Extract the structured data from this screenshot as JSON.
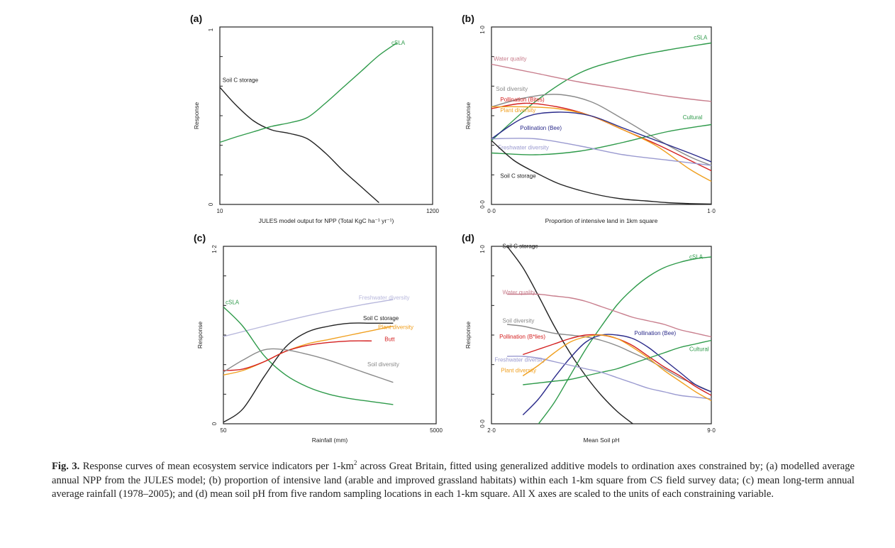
{
  "caption": {
    "label": "Fig. 3.",
    "text_before_sup": "Response curves of mean ecosystem service indicators per 1-km",
    "sup": "2",
    "text_after_sup": "across Great Britain, fitted using generalized additive models to ordination axes constrained by; (a) modelled average annual NPP from the JULES model; (b) proportion of intensive land (arable and improved grassland habitats) within each 1-km square from CS field survey data; (c) mean long-term annual average rainfall (1978–2005); and (d) mean soil pH from five random sampling locations in each 1-km square. All X axes are scaled to the units of each constraining variable."
  },
  "colors": {
    "black": "#222222",
    "green": "#2e9a4a",
    "pink": "#c87d8c",
    "grey": "#8a8a8a",
    "red": "#d42020",
    "orange": "#f0a020",
    "navy": "#2a2a8a",
    "lavender": "#9a9ad0",
    "lightlavender": "#b8b8dc"
  },
  "chart_data": [
    {
      "panel": "(a)",
      "type": "line",
      "xlabel": "JULES model output for NPP (Total KgC ha⁻¹ yr⁻¹)",
      "ylabel": "Response",
      "xlim": [
        10,
        1200
      ],
      "ylim": [
        0,
        1
      ],
      "xticks": [
        "10",
        "1200"
      ],
      "yticks": [
        "0",
        "1"
      ],
      "series": [
        {
          "name": "Soil C storage",
          "color": "black",
          "label_at": [
            25,
            0.69
          ],
          "x": [
            10,
            100,
            200,
            300,
            400,
            500,
            600,
            700,
            800,
            900
          ],
          "y": [
            0.66,
            0.56,
            0.47,
            0.42,
            0.4,
            0.37,
            0.29,
            0.19,
            0.1,
            0.01
          ]
        },
        {
          "name": "cSLA",
          "color": "green",
          "label_at": [
            970,
            0.9
          ],
          "x": [
            10,
            100,
            200,
            300,
            400,
            500,
            600,
            700,
            800,
            900,
            1000
          ],
          "y": [
            0.35,
            0.38,
            0.41,
            0.44,
            0.46,
            0.49,
            0.57,
            0.66,
            0.75,
            0.84,
            0.91
          ]
        }
      ]
    },
    {
      "panel": "(b)",
      "type": "line",
      "xlabel": "Proportion of intensive land in 1km square",
      "ylabel": "Response",
      "xlim": [
        0,
        1
      ],
      "ylim": [
        0,
        1
      ],
      "xticks": [
        "0·0",
        "1·0"
      ],
      "yticks": [
        "0·0",
        "1·0"
      ],
      "series": [
        {
          "name": "cSLA",
          "color": "green",
          "label_at": [
            0.92,
            0.93
          ],
          "x": [
            0,
            0.2,
            0.4,
            0.6,
            0.8,
            1.0
          ],
          "y": [
            0.36,
            0.58,
            0.74,
            0.82,
            0.87,
            0.91
          ]
        },
        {
          "name": "Water quality",
          "color": "pink",
          "label_at": [
            0.01,
            0.81
          ],
          "x": [
            0,
            0.2,
            0.4,
            0.6,
            0.8,
            1.0
          ],
          "y": [
            0.79,
            0.74,
            0.69,
            0.65,
            0.61,
            0.58
          ]
        },
        {
          "name": "Soil diversity",
          "color": "grey",
          "label_at": [
            0.02,
            0.64
          ],
          "x": [
            0,
            0.15,
            0.3,
            0.45,
            0.6,
            0.75,
            0.9,
            1.0
          ],
          "y": [
            0.55,
            0.6,
            0.62,
            0.58,
            0.48,
            0.37,
            0.27,
            0.22
          ]
        },
        {
          "name": "Pollination (Bites)",
          "color": "red",
          "label_at": [
            0.04,
            0.58
          ],
          "x": [
            0,
            0.15,
            0.3,
            0.45,
            0.6,
            0.75,
            0.9,
            1.0
          ],
          "y": [
            0.54,
            0.57,
            0.55,
            0.5,
            0.42,
            0.34,
            0.25,
            0.19
          ]
        },
        {
          "name": "Plant diversity",
          "color": "orange",
          "label_at": [
            0.04,
            0.52
          ],
          "x": [
            0,
            0.15,
            0.3,
            0.45,
            0.6,
            0.75,
            0.9,
            1.0
          ],
          "y": [
            0.55,
            0.55,
            0.54,
            0.5,
            0.42,
            0.33,
            0.2,
            0.13
          ]
        },
        {
          "name": "Cultural",
          "color": "green",
          "label_at": [
            0.87,
            0.48
          ],
          "x": [
            0,
            0.2,
            0.4,
            0.6,
            0.8,
            1.0
          ],
          "y": [
            0.29,
            0.28,
            0.3,
            0.35,
            0.41,
            0.45
          ]
        },
        {
          "name": "Pollination (Bee)",
          "color": "navy",
          "label_at": [
            0.13,
            0.42
          ],
          "x": [
            0,
            0.15,
            0.3,
            0.45,
            0.6,
            0.75,
            0.9,
            1.0
          ],
          "y": [
            0.37,
            0.49,
            0.52,
            0.5,
            0.43,
            0.36,
            0.29,
            0.24
          ]
        },
        {
          "name": "Freshwater diversity",
          "color": "lavender",
          "label_at": [
            0.03,
            0.31
          ],
          "x": [
            0,
            0.2,
            0.4,
            0.6,
            0.8,
            1.0
          ],
          "y": [
            0.37,
            0.37,
            0.33,
            0.28,
            0.25,
            0.22
          ]
        },
        {
          "name": "Soil C storage",
          "color": "black",
          "label_at": [
            0.04,
            0.15
          ],
          "x": [
            0,
            0.1,
            0.2,
            0.3,
            0.4,
            0.5,
            0.6,
            0.7,
            0.8,
            0.9,
            1.0
          ],
          "y": [
            0.36,
            0.25,
            0.18,
            0.12,
            0.08,
            0.05,
            0.03,
            0.02,
            0.01,
            0.005,
            0.002
          ]
        }
      ]
    },
    {
      "panel": "(c)",
      "type": "line",
      "xlabel": "Rainfall (mm)",
      "ylabel": "Response",
      "xlim": [
        50,
        5000
      ],
      "ylim": [
        0,
        1.2
      ],
      "xticks": [
        "50",
        "5000"
      ],
      "yticks": [
        "0",
        "1·2"
      ],
      "series": [
        {
          "name": "Freshwater diversity",
          "color": "lightlavender",
          "label_at": [
            3200,
            0.84
          ],
          "x": [
            50,
            1000,
            2000,
            3000,
            4000
          ],
          "y": [
            0.59,
            0.66,
            0.73,
            0.79,
            0.84
          ]
        },
        {
          "name": "cSLA",
          "color": "green",
          "label_at": [
            100,
            0.81
          ],
          "x": [
            50,
            500,
            1000,
            1500,
            2000,
            2500,
            3000,
            3500,
            4000
          ],
          "y": [
            0.79,
            0.66,
            0.46,
            0.33,
            0.25,
            0.2,
            0.17,
            0.15,
            0.13
          ]
        },
        {
          "name": "Soil C storage",
          "color": "black",
          "label_at": [
            3300,
            0.7
          ],
          "x": [
            50,
            500,
            1000,
            1500,
            2000,
            2500,
            3000,
            3500,
            4000
          ],
          "y": [
            0.01,
            0.1,
            0.32,
            0.52,
            0.62,
            0.66,
            0.68,
            0.68,
            0.68
          ]
        },
        {
          "name": "Plant diversity",
          "color": "orange",
          "label_at": [
            3650,
            0.64
          ],
          "x": [
            50,
            500,
            1000,
            1500,
            2000,
            2500,
            3000,
            3500,
            4000
          ],
          "y": [
            0.33,
            0.36,
            0.42,
            0.49,
            0.54,
            0.57,
            0.6,
            0.63,
            0.66
          ]
        },
        {
          "name": "Butt",
          "color": "red",
          "label_at": [
            3800,
            0.56
          ],
          "x": [
            50,
            500,
            1000,
            1500,
            2000,
            2500,
            3000,
            3500
          ],
          "y": [
            0.36,
            0.37,
            0.42,
            0.49,
            0.53,
            0.55,
            0.56,
            0.56
          ]
        },
        {
          "name": "Soil diversity",
          "color": "grey",
          "label_at": [
            3400,
            0.39
          ],
          "x": [
            50,
            500,
            1000,
            1500,
            2000,
            2500,
            3000,
            3500,
            4000
          ],
          "y": [
            0.35,
            0.43,
            0.5,
            0.5,
            0.47,
            0.43,
            0.38,
            0.33,
            0.28
          ]
        }
      ]
    },
    {
      "panel": "(d)",
      "type": "line",
      "xlabel": "Mean Soil pH",
      "ylabel": "Response",
      "xlim": [
        2,
        9
      ],
      "ylim": [
        0,
        1
      ],
      "xticks": [
        "2·0",
        "9·0"
      ],
      "yticks": [
        "0·0",
        "1·0"
      ],
      "series": [
        {
          "name": "Soil C storage",
          "color": "black",
          "label_at": [
            2.35,
            0.99
          ],
          "x": [
            2.5,
            3,
            3.5,
            4,
            4.5,
            5,
            5.5,
            6,
            6.5
          ],
          "y": [
            1.0,
            0.88,
            0.72,
            0.55,
            0.4,
            0.27,
            0.16,
            0.07,
            0.0
          ]
        },
        {
          "name": "cSLA",
          "color": "green",
          "label_at": [
            8.3,
            0.93
          ],
          "x": [
            3.5,
            4,
            4.5,
            5,
            5.5,
            6,
            6.5,
            7,
            7.5,
            8,
            8.5,
            9
          ],
          "y": [
            0.0,
            0.12,
            0.27,
            0.42,
            0.55,
            0.67,
            0.76,
            0.83,
            0.88,
            0.91,
            0.93,
            0.94
          ]
        },
        {
          "name": "Water quality",
          "color": "pink",
          "label_at": [
            2.35,
            0.73
          ],
          "x": [
            2.5,
            3,
            3.5,
            4,
            4.5,
            5,
            5.5,
            6,
            6.5,
            7,
            7.5,
            8,
            8.5,
            9
          ],
          "y": [
            0.73,
            0.73,
            0.73,
            0.72,
            0.71,
            0.69,
            0.66,
            0.63,
            0.6,
            0.58,
            0.56,
            0.53,
            0.51,
            0.49
          ]
        },
        {
          "name": "Soil diversity",
          "color": "grey",
          "label_at": [
            2.35,
            0.57
          ],
          "x": [
            2.5,
            3,
            3.5,
            4,
            4.5,
            5,
            5.5,
            6,
            6.5,
            7,
            7.5,
            8,
            8.5,
            9
          ],
          "y": [
            0.56,
            0.55,
            0.53,
            0.51,
            0.5,
            0.49,
            0.47,
            0.44,
            0.4,
            0.36,
            0.31,
            0.26,
            0.22,
            0.18
          ]
        },
        {
          "name": "Pollination (B*lies)",
          "color": "red",
          "label_at": [
            2.25,
            0.48
          ],
          "x": [
            3,
            3.5,
            4,
            4.5,
            5,
            5.5,
            6,
            6.5,
            7,
            7.5,
            8,
            8.5,
            9
          ],
          "y": [
            0.39,
            0.42,
            0.45,
            0.48,
            0.5,
            0.5,
            0.48,
            0.44,
            0.38,
            0.32,
            0.27,
            0.21,
            0.16
          ]
        },
        {
          "name": "Pollination (Bee)",
          "color": "navy",
          "label_at": [
            6.55,
            0.5
          ],
          "x": [
            3,
            3.5,
            4,
            4.5,
            5,
            5.5,
            6,
            6.5,
            7,
            7.5,
            8,
            8.5,
            9
          ],
          "y": [
            0.05,
            0.14,
            0.26,
            0.37,
            0.46,
            0.5,
            0.5,
            0.48,
            0.43,
            0.36,
            0.29,
            0.22,
            0.18
          ]
        },
        {
          "name": "Cultural",
          "color": "green",
          "label_at": [
            8.3,
            0.41
          ],
          "x": [
            3,
            3.5,
            4,
            4.5,
            5,
            5.5,
            6,
            6.5,
            7,
            7.5,
            8,
            8.5,
            9
          ],
          "y": [
            0.22,
            0.23,
            0.24,
            0.25,
            0.27,
            0.29,
            0.31,
            0.34,
            0.37,
            0.4,
            0.43,
            0.45,
            0.47
          ]
        },
        {
          "name": "Freshwater diversity",
          "color": "lavender",
          "label_at": [
            2.1,
            0.35
          ],
          "x": [
            2.5,
            3,
            3.5,
            4,
            4.5,
            5,
            5.5,
            6,
            6.5,
            7,
            7.5,
            8,
            8.5,
            9
          ],
          "y": [
            0.38,
            0.38,
            0.37,
            0.35,
            0.33,
            0.31,
            0.29,
            0.26,
            0.23,
            0.2,
            0.18,
            0.16,
            0.15,
            0.14
          ]
        },
        {
          "name": "Plant diversity",
          "color": "orange",
          "label_at": [
            2.3,
            0.29
          ],
          "x": [
            3,
            3.5,
            4,
            4.5,
            5,
            5.5,
            6,
            6.5,
            7,
            7.5,
            8,
            8.5,
            9
          ],
          "y": [
            0.27,
            0.33,
            0.4,
            0.46,
            0.49,
            0.5,
            0.48,
            0.43,
            0.37,
            0.3,
            0.24,
            0.18,
            0.13
          ]
        }
      ]
    }
  ]
}
